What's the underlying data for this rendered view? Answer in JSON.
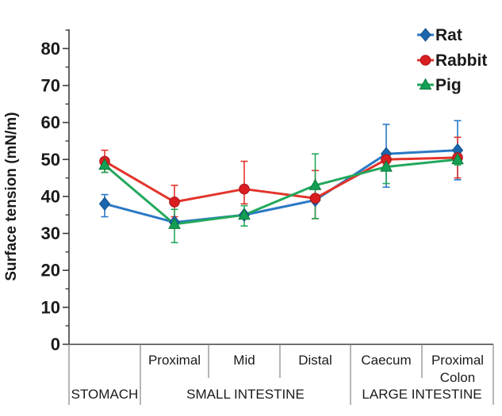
{
  "chart_data": {
    "type": "line",
    "title": "",
    "ylabel": "Surface tension (mN/m)",
    "xlabel": "",
    "ylim": [
      0,
      85
    ],
    "ytick_interval": 10,
    "ytick_minor_interval": 5,
    "ytick_labels": [
      "0",
      "10",
      "20",
      "30",
      "40",
      "50",
      "60",
      "70",
      "80"
    ],
    "grid": false,
    "legend_position": "top-right",
    "categories": [
      "Stomach",
      "Proximal",
      "Mid",
      "Distal",
      "Caecum",
      "Proximal Colon"
    ],
    "segment_labels": [
      [],
      [
        "Proximal"
      ],
      [
        "Mid"
      ],
      [
        "Distal"
      ],
      [
        "Caecum"
      ],
      [
        "Proximal",
        "Colon"
      ]
    ],
    "groups": [
      {
        "label": "STOMACH",
        "from": 0,
        "to": 1
      },
      {
        "label": "SMALL INTESTINE",
        "from": 1,
        "to": 4
      },
      {
        "label": "LARGE INTESTINE",
        "from": 4,
        "to": 6
      }
    ],
    "series": [
      {
        "name": "Rat",
        "marker": "diamond",
        "color": "#1a67ae",
        "line_color": "#2a79c4",
        "edge_color": "#14508a",
        "values": [
          38,
          33,
          35,
          39,
          51.5,
          52.5
        ],
        "err_up": [
          2.5,
          0,
          0,
          0,
          8,
          8
        ],
        "err_down": [
          3.5,
          0,
          0,
          0,
          9,
          8
        ]
      },
      {
        "name": "Rabbit",
        "marker": "circle",
        "color": "#d91e22",
        "line_color": "#e2342b",
        "edge_color": "#a81418",
        "values": [
          49.5,
          38.5,
          42,
          39.5,
          50,
          50.5
        ],
        "err_up": [
          3,
          4.5,
          7.5,
          7.5,
          1.5,
          5.5
        ],
        "err_down": [
          3,
          4,
          4,
          5.5,
          1.5,
          5.5
        ]
      },
      {
        "name": "Pig",
        "marker": "triangle",
        "color": "#14a053",
        "line_color": "#23a85c",
        "edge_color": "#0d7a3d",
        "values": [
          48.5,
          32.5,
          35,
          43,
          48,
          50
        ],
        "err_up": [
          1.5,
          4,
          2.5,
          8.5,
          2,
          1.5
        ],
        "err_down": [
          2,
          5,
          3,
          9,
          4.5,
          1.5
        ]
      }
    ],
    "axis_color": "#3d3d3d",
    "table_line_color": "#8f8f8f",
    "text_color": "#1a1a1a"
  }
}
